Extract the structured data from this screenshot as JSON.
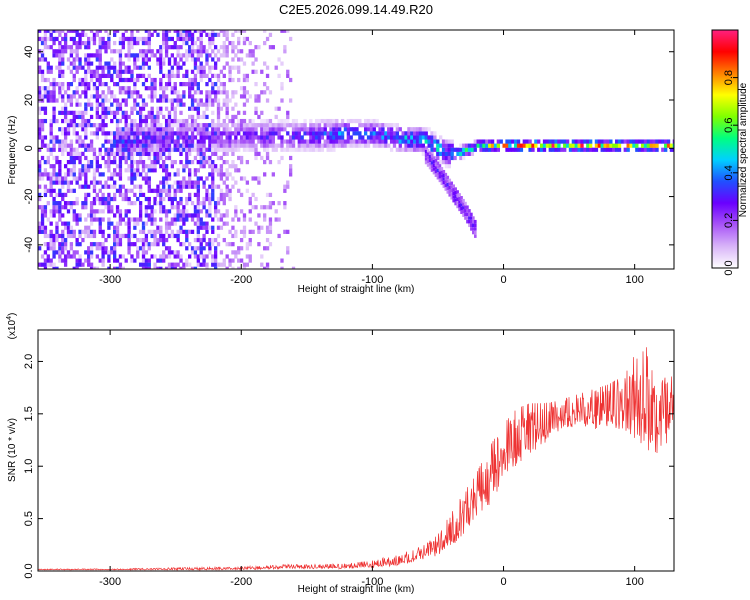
{
  "figure": {
    "title": "C2E5.2026.099.14.49.R20"
  },
  "chart_data": [
    {
      "type": "heatmap",
      "name": "spectrogram",
      "xlabel": "Height of straight line (km)",
      "ylabel": "Frequency (Hz)",
      "xlim": [
        -355,
        130
      ],
      "ylim": [
        -50,
        49
      ],
      "xticks": [
        -300,
        -200,
        -100,
        0,
        100
      ],
      "xtick_labels": [
        "-300",
        "-200",
        "-100",
        "0",
        "100"
      ],
      "yticks": [
        -40,
        -20,
        0,
        20,
        40
      ],
      "ytick_labels": [
        "-40",
        "-20",
        "0",
        "20",
        "40"
      ],
      "colorbar": {
        "label": "Normalized spectral amplitude",
        "range": [
          0,
          1
        ],
        "ticks": [
          0.0,
          0.2,
          0.4,
          0.6,
          0.8
        ],
        "tick_labels": [
          "0.0",
          "0.2",
          "0.4",
          "0.6",
          "0.8"
        ],
        "colors": [
          "#ffffff",
          "#d8b4f8",
          "#a855f7",
          "#6a00ff",
          "#2050ff",
          "#00d0ff",
          "#00ff80",
          "#80ff00",
          "#ffff00",
          "#ff8000",
          "#ff0000",
          "#ff2080"
        ]
      },
      "ridge": {
        "description_values": "dominant frequency band vs height",
        "x": [
          -290,
          -250,
          -200,
          -150,
          -120,
          -100,
          -80,
          -60,
          -45,
          -35,
          -20,
          0,
          20,
          50,
          80,
          110,
          130
        ],
        "y": [
          3,
          4,
          5,
          5,
          6,
          6,
          4,
          3,
          -2,
          -2,
          1,
          1,
          1,
          1,
          1,
          1,
          1
        ],
        "amplitude": [
          0.35,
          0.3,
          0.3,
          0.35,
          0.45,
          0.45,
          0.5,
          0.55,
          0.5,
          0.55,
          0.65,
          0.8,
          0.85,
          0.85,
          0.85,
          0.8,
          0.8
        ]
      },
      "branch": {
        "x": [
          -60,
          -50,
          -40,
          -30,
          -22
        ],
        "y": [
          -3,
          -10,
          -18,
          -26,
          -34
        ]
      }
    },
    {
      "type": "line",
      "name": "snr",
      "xlabel": "Height of straight line (km)",
      "ylabel": "SNR (10 * v/v)",
      "y_multiplier_label": "(x10",
      "y_multiplier_exponent": "4",
      "y_multiplier_suffix": ")",
      "xlim": [
        -355,
        130
      ],
      "ylim": [
        0,
        2.3
      ],
      "xticks": [
        -300,
        -200,
        -100,
        0,
        100
      ],
      "xtick_labels": [
        "-300",
        "-200",
        "-100",
        "0",
        "100"
      ],
      "yticks": [
        0.0,
        0.5,
        1.0,
        1.5,
        2.0
      ],
      "ytick_labels": [
        "0.0",
        "0.5",
        "1.0",
        "1.5",
        "2.0"
      ],
      "color": "#ee3333",
      "envelope": {
        "x": [
          -355,
          -300,
          -250,
          -200,
          -170,
          -150,
          -120,
          -100,
          -80,
          -70,
          -60,
          -50,
          -40,
          -30,
          -20,
          -10,
          0,
          10,
          20,
          30,
          40,
          60,
          80,
          90,
          100,
          110,
          120,
          130
        ],
        "y_low": [
          0.01,
          0.01,
          0.01,
          0.01,
          0.02,
          0.02,
          0.02,
          0.03,
          0.05,
          0.07,
          0.1,
          0.15,
          0.22,
          0.32,
          0.45,
          0.6,
          0.85,
          1.0,
          1.1,
          1.2,
          1.3,
          1.35,
          1.35,
          1.3,
          1.2,
          1.1,
          1.1,
          1.2
        ],
        "y_high": [
          0.02,
          0.02,
          0.03,
          0.04,
          0.06,
          0.06,
          0.07,
          0.1,
          0.16,
          0.2,
          0.25,
          0.35,
          0.55,
          0.75,
          0.95,
          1.2,
          1.4,
          1.55,
          1.6,
          1.6,
          1.62,
          1.7,
          1.78,
          1.85,
          2.0,
          2.15,
          2.05,
          1.95
        ]
      }
    }
  ]
}
